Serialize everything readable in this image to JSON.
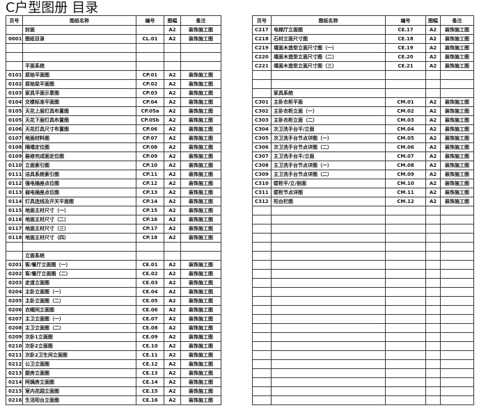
{
  "title": "C户型图册 目录",
  "headers": [
    "页号",
    "图纸名称",
    "编号",
    "图幅",
    "备注"
  ],
  "left_rows": [
    [
      "",
      "封面",
      "",
      "A2",
      "装饰施工图"
    ],
    [
      "0001",
      "图纸目录",
      "CL.01",
      "A2",
      "装饰施工图"
    ],
    [
      "",
      "",
      "",
      "",
      ""
    ],
    [
      "",
      "",
      "",
      "",
      ""
    ],
    [
      "",
      "平面系统",
      "",
      "",
      ""
    ],
    [
      "0101",
      "原始平面图",
      "CP.01",
      "A2",
      "装饰施工图"
    ],
    [
      "0102",
      "原始梁平面图",
      "CP.02",
      "A2",
      "装饰施工图"
    ],
    [
      "0103",
      "家具平面示意图",
      "CP.03",
      "A2",
      "装饰施工图"
    ],
    [
      "0104",
      "交楼标准平面图",
      "CP.04",
      "A2",
      "装饰施工图"
    ],
    [
      "0105a",
      "天花上层灯具布置图",
      "CP.05a",
      "A2",
      "装饰施工图"
    ],
    [
      "0105b",
      "天花下层灯具布置图",
      "CP.05b",
      "A2",
      "装饰施工图"
    ],
    [
      "0106",
      "天花灯具尺寸布置图",
      "CP.06",
      "A2",
      "装饰施工图"
    ],
    [
      "0107",
      "地面材料图",
      "CP.07",
      "A2",
      "装饰施工图"
    ],
    [
      "0108",
      "隔墙定位图",
      "CP.08",
      "A2",
      "装饰施工图"
    ],
    [
      "0109",
      "装修完成面定位图",
      "CP.09",
      "A2",
      "装饰施工图"
    ],
    [
      "0110",
      "立面索引图",
      "CP.10",
      "A2",
      "装饰施工图"
    ],
    [
      "0111",
      "洁具系统索引图",
      "CP.11",
      "A2",
      "装饰施工图"
    ],
    [
      "0112",
      "强电插座点位图",
      "CP.12",
      "A2",
      "装饰施工图"
    ],
    [
      "0113",
      "弱电插座点位图",
      "CP.13",
      "A2",
      "装饰施工图"
    ],
    [
      "0114",
      "灯具连线及开关平面图",
      "CP.14",
      "A2",
      "装饰施工图"
    ],
    [
      "0115",
      "地面主材尺寸（一）",
      "CP.15",
      "A2",
      "装饰施工图"
    ],
    [
      "0116",
      "地面主材尺寸（二）",
      "CP.16",
      "A2",
      "装饰施工图"
    ],
    [
      "0117",
      "地面主材尺寸（三）",
      "CP.17",
      "A2",
      "装饰施工图"
    ],
    [
      "0118",
      "地面主材尺寸（四）",
      "CP.18",
      "A2",
      "装饰施工图"
    ],
    [
      "",
      "",
      "",
      "",
      ""
    ],
    [
      "",
      "立面系统",
      "",
      "",
      ""
    ],
    [
      "0201",
      "客/餐厅立面图（一）",
      "CE.01",
      "A2",
      "装饰施工图"
    ],
    [
      "0202",
      "客/餐厅立面图（二）",
      "CE.02",
      "A2",
      "装饰施工图"
    ],
    [
      "0203",
      "走道立面图",
      "CE.03",
      "A2",
      "装饰施工图"
    ],
    [
      "0204",
      "主卧立面图（一）",
      "CE.04",
      "A2",
      "装饰施工图"
    ],
    [
      "0205",
      "主卧立面图（二）",
      "CE.05",
      "A2",
      "装饰施工图"
    ],
    [
      "0206",
      "衣帽间立面图",
      "CE.06",
      "A2",
      "装饰施工图"
    ],
    [
      "0207",
      "主卫立面图（一）",
      "CE.07",
      "A2",
      "装饰施工图"
    ],
    [
      "0208",
      "主卫立面图（二）",
      "CE.08",
      "A2",
      "装饰施工图"
    ],
    [
      "0209",
      "次卧1立面图",
      "CE.09",
      "A2",
      "装饰施工图"
    ],
    [
      "0210",
      "次卧2立面图",
      "CE.10",
      "A2",
      "装饰施工图"
    ],
    [
      "0211",
      "次卧2卫生间立面图",
      "CE.11",
      "A2",
      "装饰施工图"
    ],
    [
      "0212",
      "公卫立面图",
      "CE.12",
      "A2",
      "装饰施工图"
    ],
    [
      "0213",
      "厨房立面图",
      "CE.13",
      "A2",
      "装饰施工图"
    ],
    [
      "0214",
      "阿姨房立面图",
      "CE.14",
      "A2",
      "装饰施工图"
    ],
    [
      "0215",
      "室内花园立面图",
      "CE.15",
      "A2",
      "装饰施工图"
    ],
    [
      "0216",
      "生活阳台立面图",
      "CE.16",
      "A2",
      "装饰施工图"
    ]
  ],
  "right_rows": [
    [
      "C217",
      "电梯厅立面图",
      "CE.17",
      "A2",
      "装饰施工图"
    ],
    [
      "C218",
      "石材立面尺寸图",
      "CE.18",
      "A2",
      "装饰施工图"
    ],
    [
      "C219",
      "墙面木造型立面尺寸图（一）",
      "CE.19",
      "A2",
      "装饰施工图"
    ],
    [
      "C220",
      "墙面木造型立面尺寸图（二）",
      "CE.20",
      "A2",
      "装饰施工图"
    ],
    [
      "C221",
      "墙面木造型立面尺寸图（三）",
      "CE.21",
      "A2",
      "装饰施工图"
    ],
    [
      "",
      "",
      "",
      "",
      ""
    ],
    [
      "",
      "",
      "",
      "",
      ""
    ],
    [
      "",
      "家具系统",
      "",
      "",
      ""
    ],
    [
      "C301",
      "主卧衣柜平面",
      "CM.01",
      "A2",
      "装饰施工图"
    ],
    [
      "C302",
      "主卧衣柜立面（一）",
      "CM.02",
      "A2",
      "装饰施工图"
    ],
    [
      "C303",
      "主卧衣柜立面（二）",
      "CM.03",
      "A2",
      "装饰施工图"
    ],
    [
      "C304",
      "次卫洗手台平/立面",
      "CM.04",
      "A2",
      "装饰施工图"
    ],
    [
      "C305",
      "次卫洗手台节点详图（一）",
      "CM.05",
      "A2",
      "装饰施工图"
    ],
    [
      "C306",
      "次卫洗手台节点详图（二）",
      "CM.06",
      "A2",
      "装饰施工图"
    ],
    [
      "C307",
      "主卫洗手台平/立面",
      "CM.07",
      "A2",
      "装饰施工图"
    ],
    [
      "C308",
      "主卫洗手台节点详图（一）",
      "CM.08",
      "A2",
      "装饰施工图"
    ],
    [
      "C309",
      "主卫洗手台节点详图（二）",
      "CM.09",
      "A2",
      "装饰施工图"
    ],
    [
      "C310",
      "壁柜平/立/剖面",
      "CM.10",
      "A2",
      "装饰施工图"
    ],
    [
      "C311",
      "壁柜节点详图",
      "CM.11",
      "A2",
      "装饰施工图"
    ],
    [
      "C312",
      "阳台栏图",
      "CM.12",
      "A2",
      "装饰施工图"
    ]
  ]
}
